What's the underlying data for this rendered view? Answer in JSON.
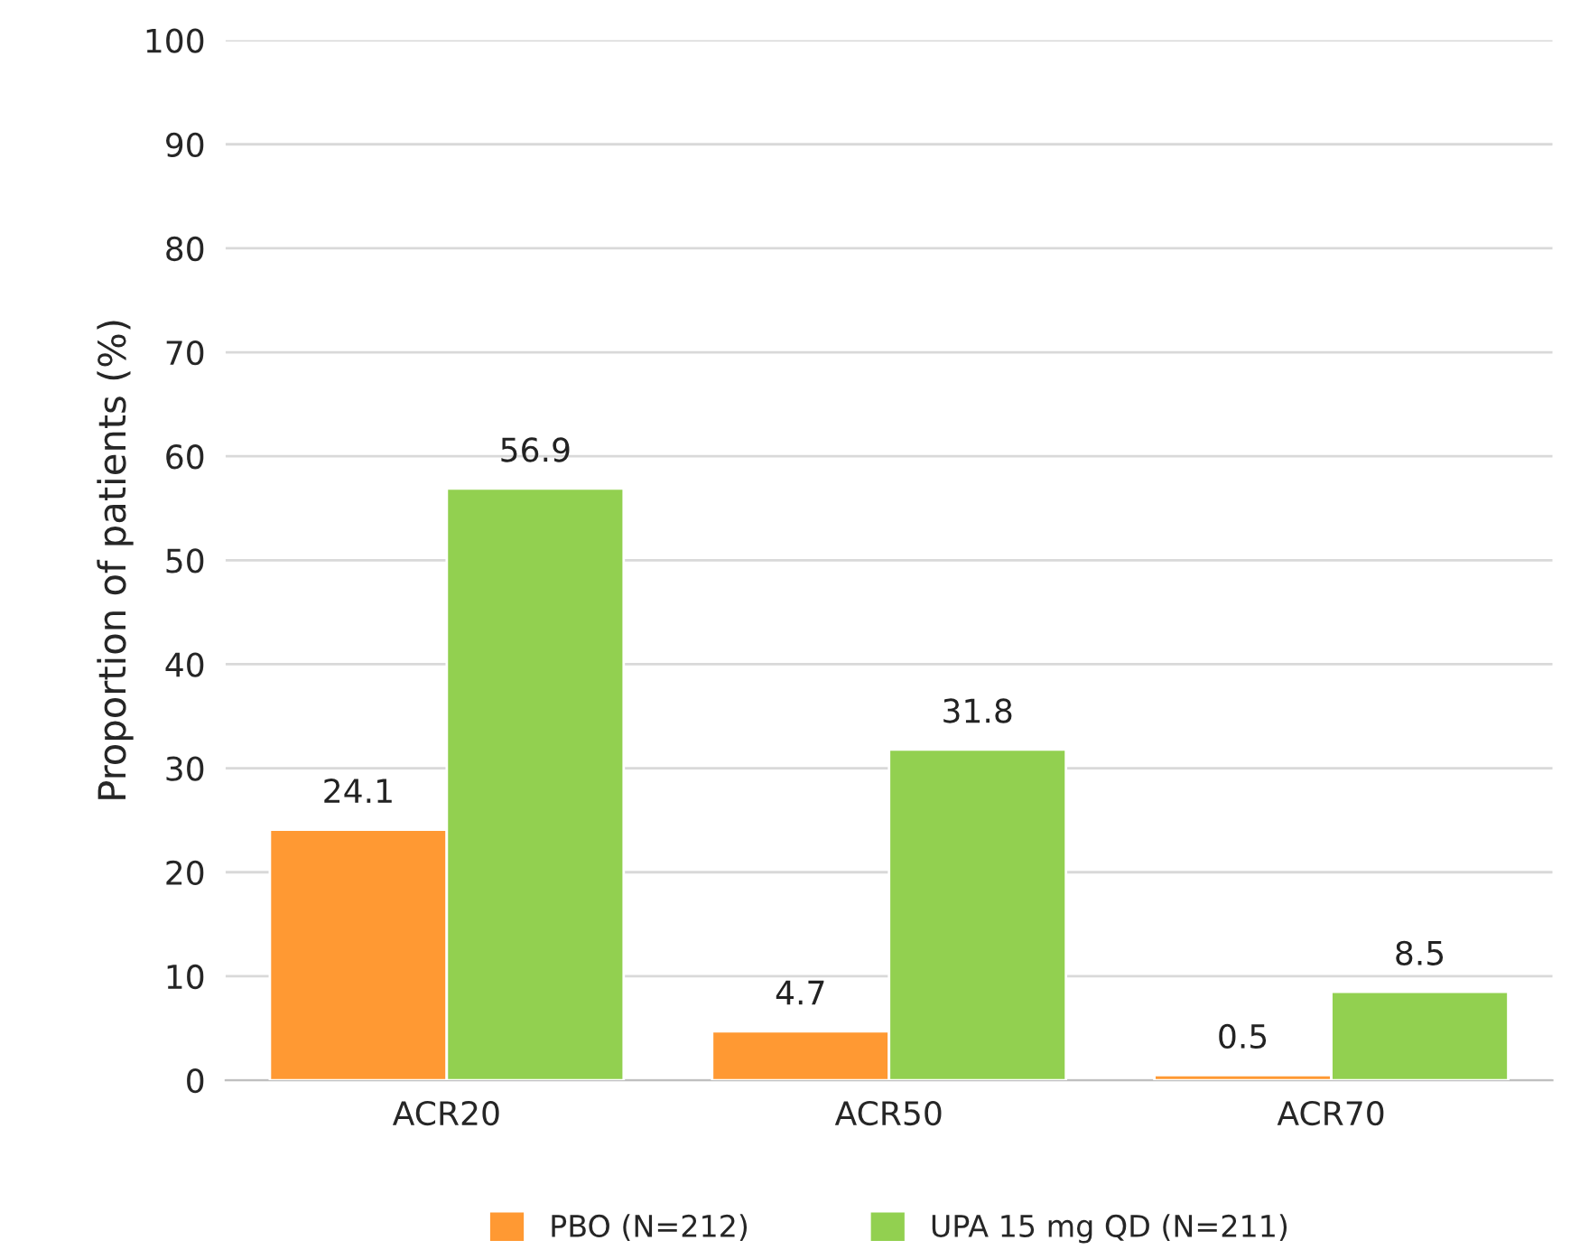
{
  "chart_data": {
    "type": "bar",
    "ylabel": "Proportion of patients (%)",
    "categories": [
      "ACR20",
      "ACR50",
      "ACR70"
    ],
    "series": [
      {
        "name": "PBO (N=212)",
        "color": "#ff9933",
        "values": [
          24.1,
          4.7,
          0.5
        ]
      },
      {
        "name": "UPA 15 mg QD (N=211)",
        "color": "#92d050",
        "values": [
          56.9,
          31.8,
          8.5
        ]
      }
    ],
    "ylim": [
      0,
      100
    ],
    "yticks": [
      0,
      10,
      20,
      30,
      40,
      50,
      60,
      70,
      80,
      90,
      100
    ],
    "grid": "y",
    "legend": "bottom",
    "data_labels": true
  }
}
